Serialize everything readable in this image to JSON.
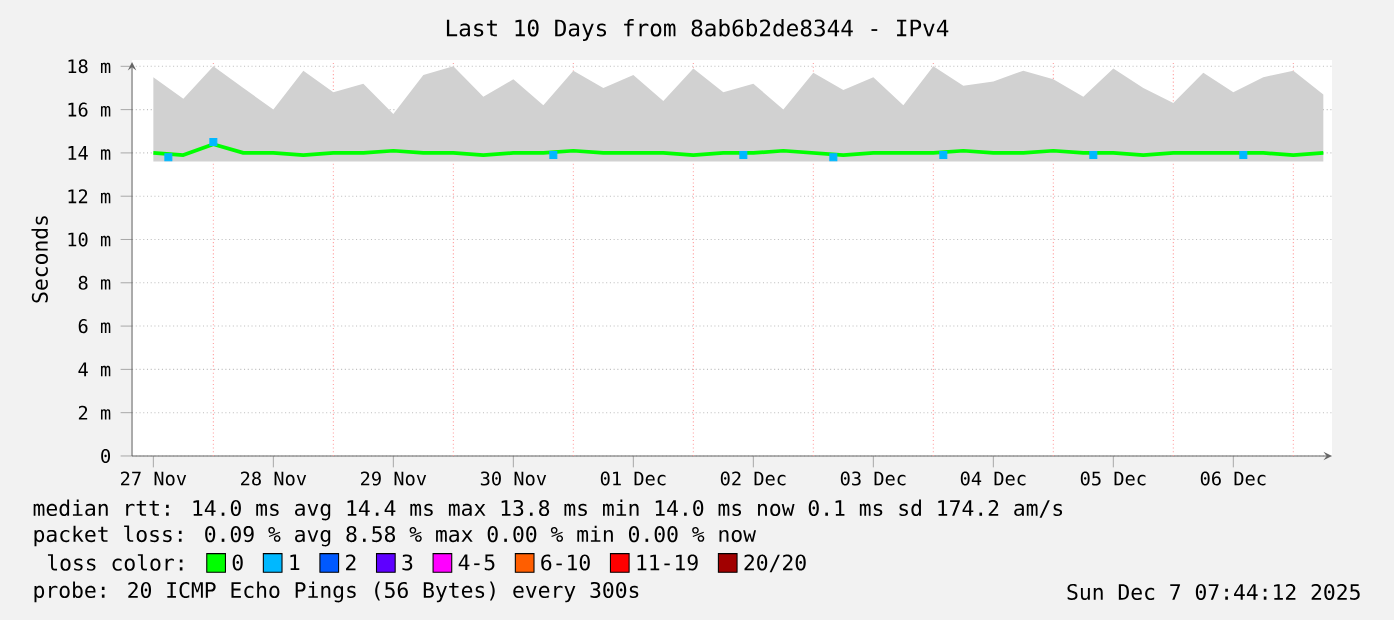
{
  "chart_data": {
    "type": "line",
    "title": "Last 10 Days from 8ab6b2de8344 - IPv4",
    "ylabel": "Seconds",
    "legend_title": "loss color:",
    "xlim": [
      "2025-11-27T07:44",
      "2025-12-07T07:44"
    ],
    "ylim": [
      0,
      18.2
    ],
    "xticks": [
      {
        "value": "2025-11-27T12:00",
        "label": "27 Nov"
      },
      {
        "value": "2025-11-28T12:00",
        "label": "28 Nov"
      },
      {
        "value": "2025-11-29T12:00",
        "label": "29 Nov"
      },
      {
        "value": "2025-11-30T12:00",
        "label": "30 Nov"
      },
      {
        "value": "2025-12-01T12:00",
        "label": "01 Dec"
      },
      {
        "value": "2025-12-02T12:00",
        "label": "02 Dec"
      },
      {
        "value": "2025-12-03T12:00",
        "label": "03 Dec"
      },
      {
        "value": "2025-12-04T12:00",
        "label": "04 Dec"
      },
      {
        "value": "2025-12-05T12:00",
        "label": "05 Dec"
      },
      {
        "value": "2025-12-06T12:00",
        "label": "06 Dec"
      }
    ],
    "yticks": [
      0,
      {
        "value": 2,
        "label": "2 m"
      },
      {
        "value": 4,
        "label": "4 m"
      },
      {
        "value": 6,
        "label": "6 m"
      },
      {
        "value": 8,
        "label": "8 m"
      },
      {
        "value": 10,
        "label": "10 m"
      },
      {
        "value": 12,
        "label": "12 m"
      },
      {
        "value": 14,
        "label": "14 m"
      },
      {
        "value": 16,
        "label": "16 m"
      },
      {
        "value": 18,
        "label": "18 m"
      }
    ],
    "grid": "y",
    "legend": "bottom",
    "line_style": "solid",
    "marker": "none",
    "ref_lines": [
      {
        "axis": "x",
        "value": "2025-11-28T00:00",
        "color": "#ff9c9c",
        "line_style": "dotted"
      },
      {
        "axis": "x",
        "value": "2025-11-29T00:00",
        "color": "#ff9c9c",
        "line_style": "dotted"
      },
      {
        "axis": "x",
        "value": "2025-11-30T00:00",
        "color": "#ff9c9c",
        "line_style": "dotted"
      },
      {
        "axis": "x",
        "value": "2025-12-01T00:00",
        "color": "#ff9c9c",
        "line_style": "dotted"
      },
      {
        "axis": "x",
        "value": "2025-12-02T00:00",
        "color": "#ff9c9c",
        "line_style": "dotted"
      },
      {
        "axis": "x",
        "value": "2025-12-03T00:00",
        "color": "#ff9c9c",
        "line_style": "dotted"
      },
      {
        "axis": "x",
        "value": "2025-12-04T00:00",
        "color": "#ff9c9c",
        "line_style": "dotted"
      },
      {
        "axis": "x",
        "value": "2025-12-05T00:00",
        "color": "#ff9c9c",
        "line_style": "dotted"
      },
      {
        "axis": "x",
        "value": "2025-12-06T00:00",
        "color": "#ff9c9c",
        "line_style": "dotted"
      },
      {
        "axis": "x",
        "value": "2025-12-07T00:00",
        "color": "#ff9c9c",
        "line_style": "dotted"
      }
    ],
    "series": [
      {
        "name": "0",
        "color": "#00ff00",
        "x": [
          "2025-11-27T12:00",
          "2025-11-27T18:00",
          "2025-11-28T00:00",
          "2025-11-28T06:00",
          "2025-11-28T12:00",
          "2025-11-28T18:00",
          "2025-11-29T00:00",
          "2025-11-29T06:00",
          "2025-11-29T12:00",
          "2025-11-29T18:00",
          "2025-11-30T00:00",
          "2025-11-30T06:00",
          "2025-11-30T12:00",
          "2025-11-30T18:00",
          "2025-12-01T00:00",
          "2025-12-01T06:00",
          "2025-12-01T12:00",
          "2025-12-01T18:00",
          "2025-12-02T00:00",
          "2025-12-02T06:00",
          "2025-12-02T12:00",
          "2025-12-02T18:00",
          "2025-12-03T00:00",
          "2025-12-03T06:00",
          "2025-12-03T12:00",
          "2025-12-03T18:00",
          "2025-12-04T00:00",
          "2025-12-04T06:00",
          "2025-12-04T12:00",
          "2025-12-04T18:00",
          "2025-12-05T00:00",
          "2025-12-05T06:00",
          "2025-12-05T12:00",
          "2025-12-05T18:00",
          "2025-12-06T00:00",
          "2025-12-06T06:00",
          "2025-12-06T12:00",
          "2025-12-06T18:00",
          "2025-12-07T00:00",
          "2025-12-07T06:00"
        ],
        "values": [
          14.0,
          13.9,
          14.4,
          14.0,
          14.0,
          13.9,
          14.0,
          14.0,
          14.1,
          14.0,
          14.0,
          13.9,
          14.0,
          14.0,
          14.1,
          14.0,
          14.0,
          14.0,
          13.9,
          14.0,
          14.0,
          14.1,
          14.0,
          13.9,
          14.0,
          14.0,
          14.0,
          14.1,
          14.0,
          14.0,
          14.1,
          14.0,
          14.0,
          13.9,
          14.0,
          14.0,
          14.0,
          14.0,
          13.9,
          14.0
        ],
        "lower": [
          13.6,
          13.6,
          13.6,
          13.6,
          13.6,
          13.6,
          13.6,
          13.6,
          13.6,
          13.6,
          13.6,
          13.6,
          13.6,
          13.6,
          13.6,
          13.6,
          13.6,
          13.6,
          13.6,
          13.6,
          13.6,
          13.6,
          13.6,
          13.6,
          13.6,
          13.6,
          13.6,
          13.6,
          13.6,
          13.6,
          13.6,
          13.6,
          13.6,
          13.6,
          13.6,
          13.6,
          13.6,
          13.6,
          13.6,
          13.6
        ],
        "upper": [
          17.5,
          16.5,
          18.0,
          17.0,
          16.0,
          17.8,
          16.8,
          17.2,
          15.8,
          17.6,
          18.0,
          16.6,
          17.4,
          16.2,
          17.8,
          17.0,
          17.6,
          16.4,
          17.9,
          16.8,
          17.2,
          16.0,
          17.7,
          16.9,
          17.5,
          16.2,
          18.0,
          17.1,
          17.3,
          17.8,
          17.4,
          16.6,
          17.9,
          17.0,
          16.3,
          17.7,
          16.8,
          17.5,
          17.8,
          16.7
        ]
      },
      {
        "name": "1",
        "color": "#00b8ff",
        "type": "scatter",
        "marker": "square",
        "x": [
          "2025-11-27T15:00",
          "2025-11-28T00:00",
          "2025-11-30T20:00",
          "2025-12-02T10:00",
          "2025-12-03T04:00",
          "2025-12-04T02:00",
          "2025-12-05T08:00",
          "2025-12-06T14:00"
        ],
        "values": [
          13.8,
          14.5,
          13.9,
          13.9,
          13.8,
          13.9,
          13.9,
          13.9
        ]
      },
      {
        "name": "2",
        "color": "#0059ff"
      },
      {
        "name": "3",
        "color": "#5e00ff"
      },
      {
        "name": "4-5",
        "color": "#ff00ff"
      },
      {
        "name": "6-10",
        "color": "#ff5e00"
      },
      {
        "name": "11-19",
        "color": "#ff0000"
      },
      {
        "name": "20/20",
        "color": "#a10000"
      }
    ],
    "annotations": [
      "median rtt:  14.0 ms avg  14.4 ms max  13.8 ms min  14.0 ms now  0.1 ms sd  174.2   am/s",
      "packet loss: 0.09 % avg  8.58 % max  0.00 % min  0.00 % now",
      "probe:       20 ICMP Echo Pings (56 Bytes) every 300s",
      "Sun Dec  7 07:44:12 2025"
    ]
  }
}
